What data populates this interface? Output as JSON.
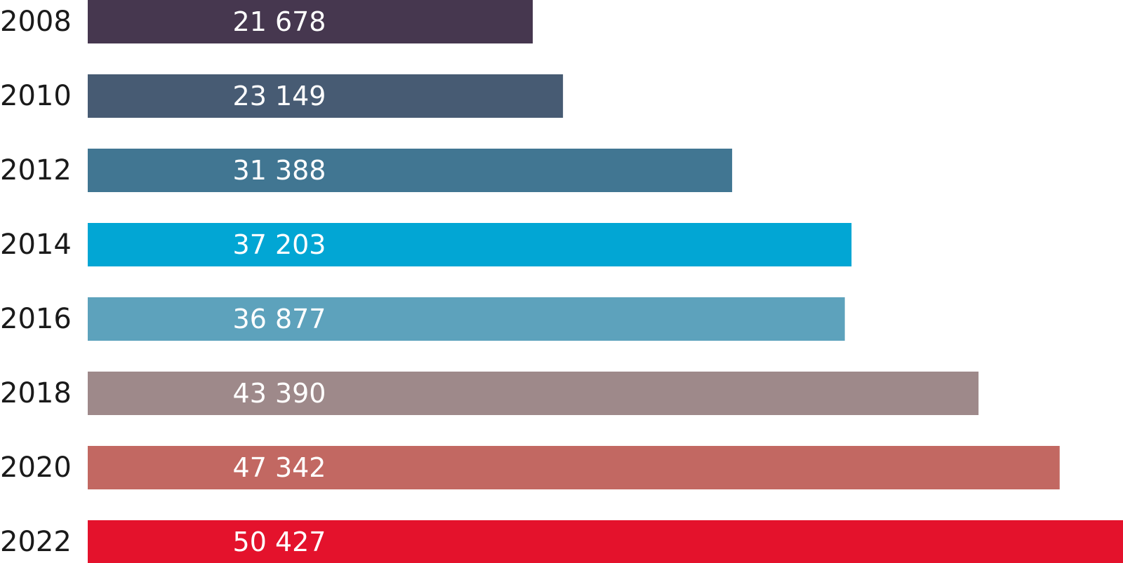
{
  "chart_data": {
    "type": "bar",
    "orientation": "horizontal",
    "categories": [
      "2008",
      "2010",
      "2012",
      "2014",
      "2016",
      "2018",
      "2020",
      "2022"
    ],
    "values": [
      21678,
      23149,
      31388,
      37203,
      36877,
      43390,
      47342,
      50427
    ],
    "value_labels": [
      "21 678",
      "23 149",
      "31 388",
      "37 203",
      "36 877",
      "43 390",
      "47 342",
      "50 427"
    ],
    "bar_colors": [
      "#46374f",
      "#475b73",
      "#417692",
      "#02a6d4",
      "#5da2bc",
      "#9e898a",
      "#c26862",
      "#e4122c"
    ],
    "title": "",
    "xlabel": "",
    "ylabel": "",
    "xlim": [
      0,
      50427
    ],
    "grid": false,
    "legend": "none"
  }
}
